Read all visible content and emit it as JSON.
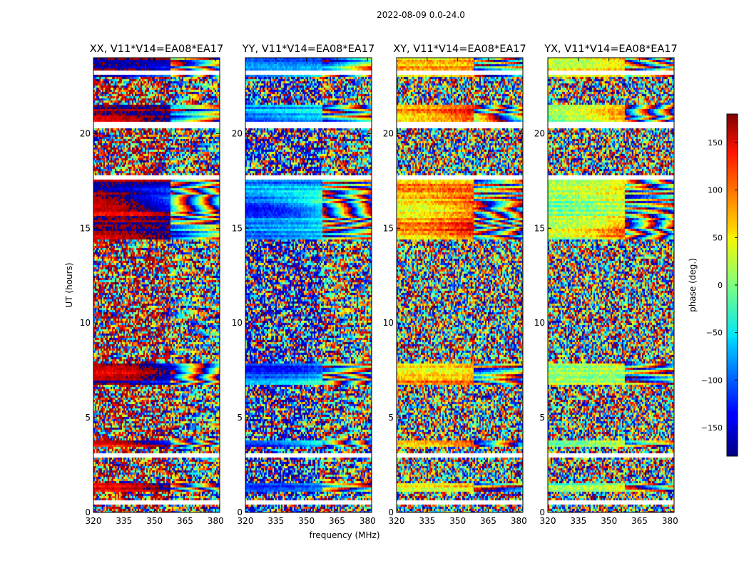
{
  "figure": {
    "suptitle": "2022-08-09 0.0-24.0"
  },
  "chart_data": {
    "type": "heatmap",
    "ylabel": "UT (hours)",
    "xlabel": "frequency (MHz)",
    "x_ticks": [
      320,
      335,
      350,
      365,
      380
    ],
    "xlim": [
      320,
      382
    ],
    "y_ticks": [
      0,
      5,
      10,
      15,
      20
    ],
    "ylim": [
      0,
      24
    ],
    "colorbar": {
      "label": "phase (deg.)",
      "ticks": [
        150,
        100,
        50,
        0,
        -50,
        -100,
        -150
      ],
      "tick_labels": [
        "150",
        "100",
        "50",
        "0",
        "−50",
        "−100",
        "−150"
      ],
      "range": [
        -180,
        180
      ],
      "colormap": "jet"
    },
    "panels": [
      {
        "title": "XX, V11*V14=EA08*EA17",
        "base_phase": 160,
        "noise": 0.55
      },
      {
        "title": "YY, V11*V14=EA08*EA17",
        "base_phase": -150,
        "noise": 0.6
      },
      {
        "title": "XY, V11*V14=EA08*EA17",
        "base_phase": 40,
        "noise": 0.9
      },
      {
        "title": "YX, V11*V14=EA08*EA17",
        "base_phase": -20,
        "noise": 0.9
      }
    ],
    "gap_hours": [
      0.6,
      3.1,
      17.7,
      20.5,
      23.3
    ],
    "coherent_bands_hours": [
      [
        1.2,
        1.6
      ],
      [
        3.5,
        3.9
      ],
      [
        6.8,
        7.9
      ],
      [
        14.5,
        17.8
      ],
      [
        20.3,
        21.6
      ],
      [
        23.0,
        24.0
      ]
    ]
  }
}
